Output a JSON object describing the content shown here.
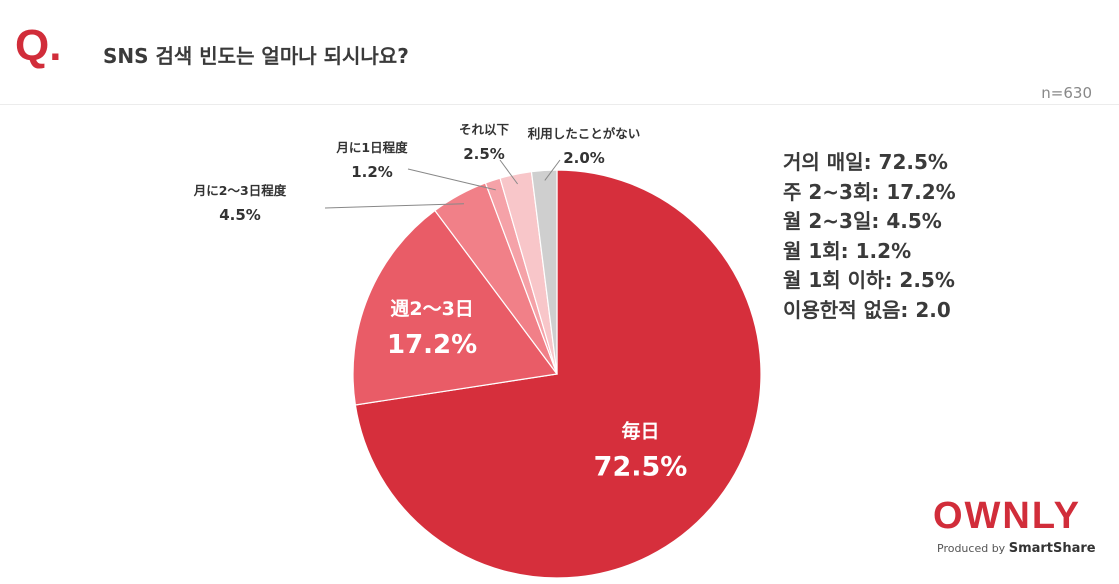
{
  "header": {
    "q_mark": "Q.",
    "question": "SNS 검색 빈도는 얼마나 되시나요?",
    "sample": "n=630"
  },
  "chart_data": {
    "type": "pie",
    "slices": [
      {
        "label": "毎日",
        "value": 72.5,
        "display": "72.5%",
        "color": "#d62f3c"
      },
      {
        "label": "週2〜3日",
        "value": 17.2,
        "display": "17.2%",
        "color": "#e95c67"
      },
      {
        "label": "月に2〜3日程度",
        "value": 4.5,
        "display": "4.5%",
        "color": "#f18088"
      },
      {
        "label": "月に1日程度",
        "value": 1.2,
        "display": "1.2%",
        "color": "#f5a2a8"
      },
      {
        "label": "それ以下",
        "value": 2.5,
        "display": "2.5%",
        "color": "#f8c6c9"
      },
      {
        "label": "利用したことがない",
        "value": 2.0,
        "display": "2.0%",
        "color": "#cfcfcf"
      }
    ]
  },
  "summary": [
    "거의 매일: 72.5%",
    "주 2~3회: 17.2%",
    "월 2~3일: 4.5%",
    "월 1회: 1.2%",
    "월 1회 이하: 2.5%",
    "이용한적 없음: 2.0"
  ],
  "branding": {
    "logo": "OWNLY",
    "produced_by": "Produced by",
    "partner": "SmartShare"
  }
}
